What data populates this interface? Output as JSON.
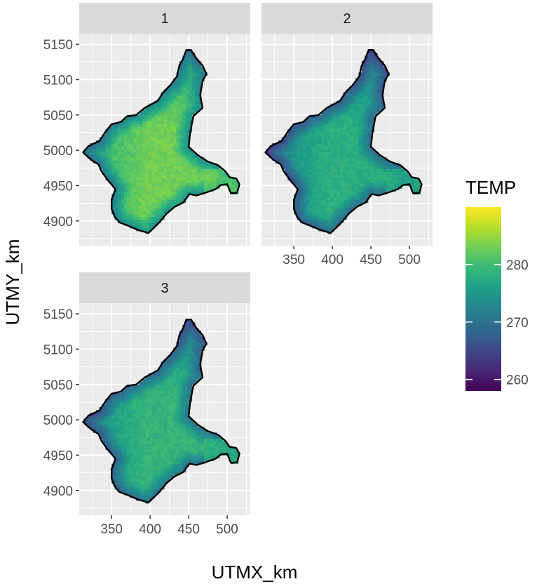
{
  "chart_data": {
    "type": "heatmap",
    "subtype": "faceted-raster-map",
    "xlabel": "UTMX_km",
    "ylabel": "UTMY_km",
    "x_ticks": [
      350,
      400,
      450,
      500
    ],
    "y_ticks": [
      4900,
      4950,
      5000,
      5050,
      5100,
      5150
    ],
    "xlim": [
      308,
      530
    ],
    "ylim": [
      4865,
      5165
    ],
    "grid": true,
    "facets": [
      {
        "label": "1",
        "mean_temp": 283
      },
      {
        "label": "2",
        "mean_temp": 278
      },
      {
        "label": "3",
        "mean_temp": 279
      }
    ],
    "legend": {
      "title": "TEMP",
      "position": "right",
      "ticks": [
        260,
        270,
        280
      ],
      "range": [
        258,
        290
      ]
    },
    "colors": {
      "panel_bg": "#ebebeb",
      "grid": "#ffffff",
      "strip_bg": "#d9d9d9",
      "outline": "#000000"
    }
  }
}
